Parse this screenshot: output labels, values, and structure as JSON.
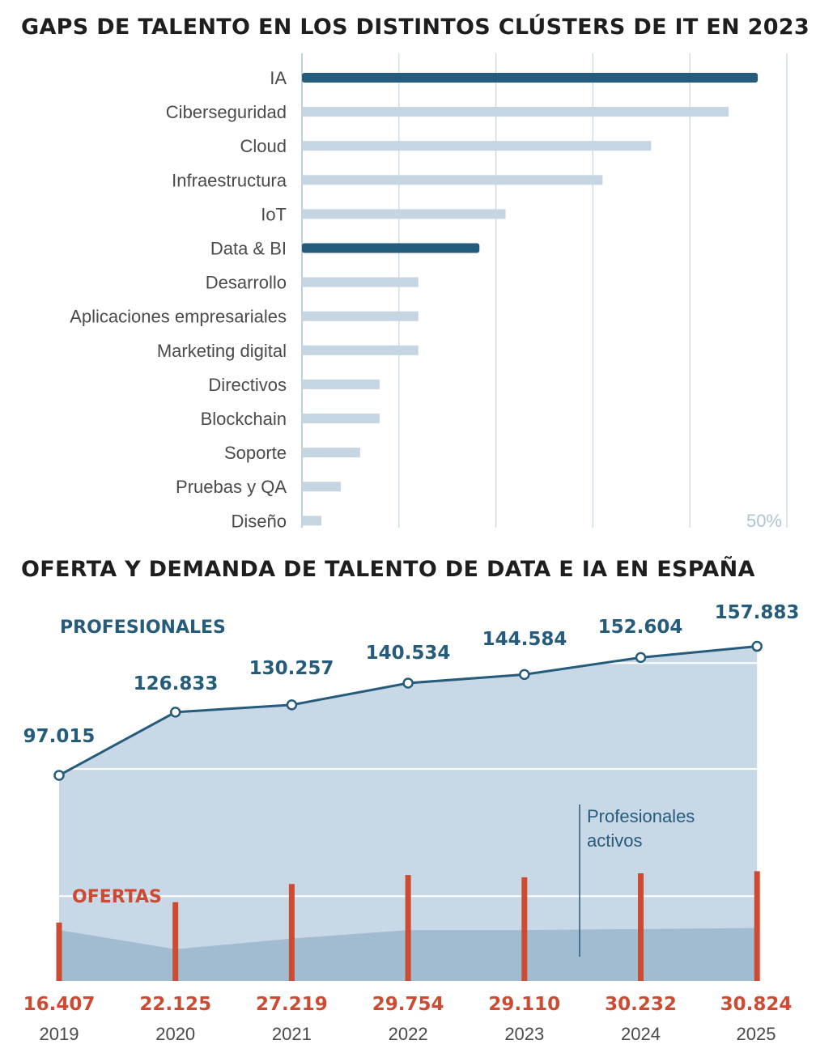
{
  "title_top": "GAPS DE TALENTO EN LOS DISTINTOS CLÚSTERS DE IT EN 2023",
  "title_bottom": "OFERTA Y DEMANDA DE TALENTO DE DATA E IA EN ESPAÑA",
  "colors": {
    "highlight_bar": "#255b7b",
    "light_bar": "#c6d5e2",
    "grid": "#c6d5e2",
    "area_profesionales": "#c8d8e6",
    "area_activos": "#a1bbd0",
    "line": "#255b7b",
    "ofertas": "#cc4b32",
    "text": "#4a4a4a"
  },
  "chart_data": [
    {
      "type": "bar",
      "orientation": "horizontal",
      "title": "GAPS DE TALENTO EN LOS DISTINTOS CLÚSTERS DE IT EN 2023",
      "categories": [
        "IA",
        "Ciberseguridad",
        "Cloud",
        "Infraestructura",
        "IoT",
        "Data & BI",
        "Desarrollo",
        "Aplicaciones empresariales",
        "Marketing digital",
        "Directivos",
        "Blockchain",
        "Soporte",
        "Pruebas y QA",
        "Diseño"
      ],
      "values": [
        47,
        44,
        36,
        31,
        21,
        18.3,
        12,
        12,
        12,
        8,
        8,
        6,
        4,
        2
      ],
      "highlighted": [
        "IA",
        "Data & BI"
      ],
      "xlim": [
        0,
        50
      ],
      "tick_label": "50%",
      "grid": true
    },
    {
      "type": "line",
      "title": "OFERTA Y DEMANDA DE TALENTO DE DATA E IA EN ESPAÑA",
      "x": [
        "2019",
        "2020",
        "2021",
        "2022",
        "2023",
        "2024",
        "2025"
      ],
      "series": [
        {
          "name": "PROFESIONALES",
          "type": "line",
          "values": [
            97015,
            126833,
            130257,
            140534,
            144584,
            152604,
            157883
          ],
          "labels": [
            "97.015",
            "126.833",
            "130.257",
            "140.534",
            "144.584",
            "152.604",
            "157.883"
          ]
        },
        {
          "name": "Profesionales activos",
          "type": "area",
          "values": [
            24000,
            15000,
            20000,
            24000,
            24000,
            24500,
            25000
          ]
        },
        {
          "name": "OFERTAS",
          "type": "bar",
          "values": [
            16407,
            22125,
            27219,
            29754,
            29110,
            30232,
            30824
          ],
          "labels": [
            "16.407",
            "22.125",
            "27.219",
            "29.754",
            "29.110",
            "30.232",
            "30.824"
          ]
        }
      ],
      "annotation": [
        "Profesionales",
        "activos"
      ],
      "ylim": [
        0,
        160000
      ],
      "grid": true
    }
  ]
}
